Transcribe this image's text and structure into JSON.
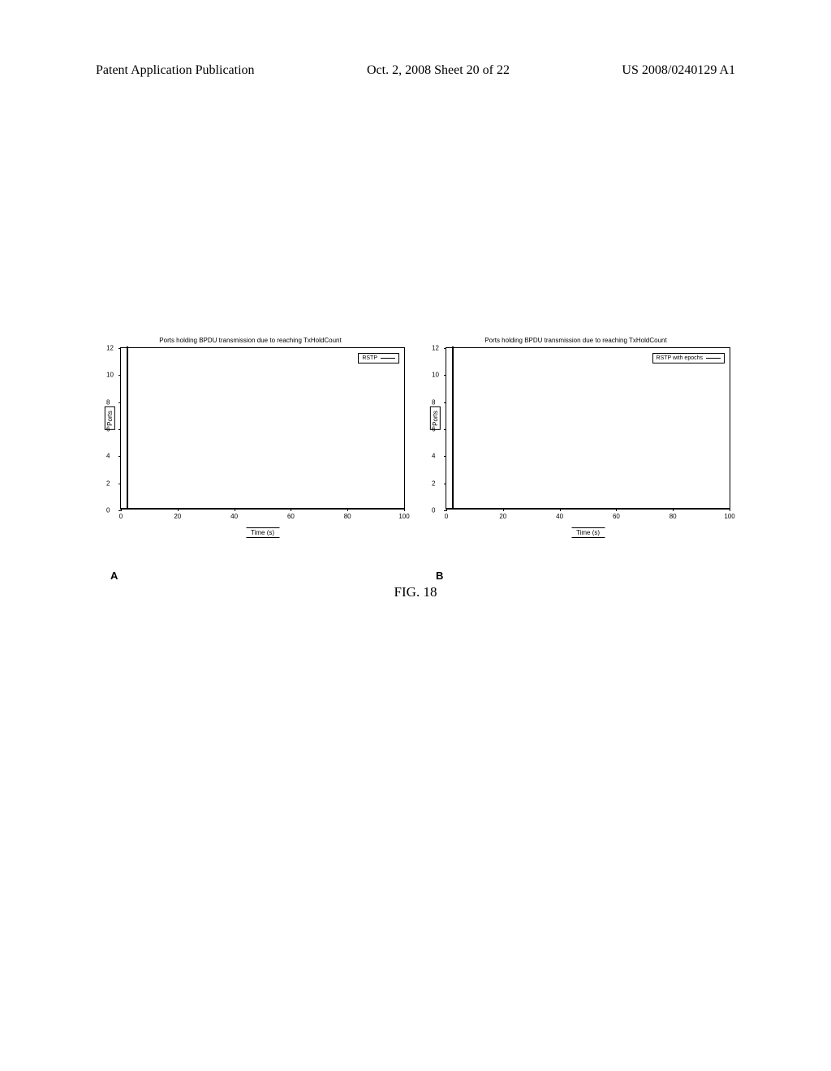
{
  "header": {
    "left": "Patent Application Publication",
    "center": "Oct. 2, 2008  Sheet 20 of 22",
    "right": "US 2008/0240129 A1"
  },
  "chartA": {
    "title": "Ports holding BPDU transmission due to reaching TxHoldCount",
    "ylabel": "Ports",
    "xlabel": "Time (s)",
    "legend": "RSTP",
    "panel_label": "A",
    "ylim": [
      0,
      12
    ],
    "yticks": [
      0,
      2,
      4,
      6,
      8,
      10,
      12
    ],
    "xlim": [
      0,
      100
    ],
    "xticks": [
      0,
      20,
      40,
      60,
      80,
      100
    ],
    "spike_x": 2,
    "spike_height": 12,
    "colors": {
      "line": "#000000",
      "border": "#000000",
      "background": "#ffffff"
    }
  },
  "chartB": {
    "title": "Ports holding BPDU transmission due to reaching TxHoldCount",
    "ylabel": "Ports",
    "xlabel": "Time (s)",
    "legend": "RSTP with epochs",
    "panel_label": "B",
    "ylim": [
      0,
      12
    ],
    "yticks": [
      0,
      2,
      4,
      6,
      8,
      10,
      12
    ],
    "xlim": [
      0,
      100
    ],
    "xticks": [
      0,
      20,
      40,
      60,
      80,
      100
    ],
    "spike_x": 2,
    "spike_height": 12,
    "colors": {
      "line": "#000000",
      "border": "#000000",
      "background": "#ffffff"
    }
  },
  "caption": "FIG. 18"
}
